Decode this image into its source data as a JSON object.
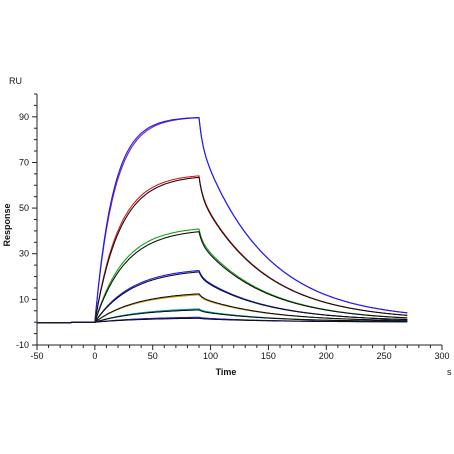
{
  "chart_data": {
    "type": "line",
    "title": "",
    "xlabel": "Time",
    "ylabel": "Response",
    "x_unit": "s",
    "y_unit": "RU",
    "xlim": [
      -50,
      300
    ],
    "ylim": [
      -10,
      100
    ],
    "x_ticks": [
      -50,
      0,
      50,
      100,
      150,
      200,
      250,
      300
    ],
    "y_ticks": [
      -10,
      10,
      30,
      50,
      70,
      90
    ],
    "grid": false,
    "legend": "none",
    "association_end": 90,
    "run_end": 270,
    "series": [
      {
        "plateau": 90.0,
        "residual": 1.0,
        "k": 0.06,
        "color": "#7a1fa8"
      },
      {
        "plateau": 90.0,
        "residual": 1.0,
        "k": 0.063,
        "color": "#1a1aff"
      },
      {
        "plateau": 65.0,
        "residual": 0.8,
        "k": 0.048,
        "color": "#e01818"
      },
      {
        "plateau": 64.5,
        "residual": 0.8,
        "k": 0.046,
        "color": "#111111"
      },
      {
        "plateau": 42.0,
        "residual": 0.5,
        "k": 0.04,
        "color": "#18a018"
      },
      {
        "plateau": 41.0,
        "residual": 0.5,
        "k": 0.038,
        "color": "#111111"
      },
      {
        "plateau": 24.0,
        "residual": 0.4,
        "k": 0.032,
        "color": "#1a1aff"
      },
      {
        "plateau": 23.5,
        "residual": 0.4,
        "k": 0.031,
        "color": "#111111"
      },
      {
        "plateau": 13.0,
        "residual": 0.3,
        "k": 0.028,
        "color": "#c8a000"
      },
      {
        "plateau": 13.5,
        "residual": 0.3,
        "k": 0.028,
        "color": "#111111"
      },
      {
        "plateau": 6.5,
        "residual": 0.2,
        "k": 0.025,
        "color": "#00a0a0"
      },
      {
        "plateau": 6.0,
        "residual": 0.2,
        "k": 0.025,
        "color": "#111111"
      },
      {
        "plateau": 2.5,
        "residual": 0.1,
        "k": 0.022,
        "color": "#1a1aff"
      },
      {
        "plateau": 2.0,
        "residual": 0.1,
        "k": 0.022,
        "color": "#111111"
      }
    ]
  }
}
